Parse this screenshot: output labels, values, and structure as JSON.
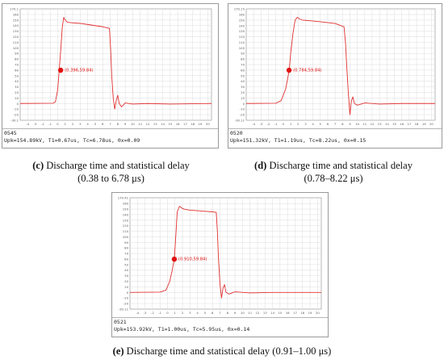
{
  "colors": {
    "trace": "#e03030",
    "marker": "#e01010",
    "grid": "#dcdcdc",
    "axis": "#888888",
    "frame": "#9a9a9a"
  },
  "chart_data": [
    {
      "type": "line",
      "id": "c",
      "top_label": "170.1",
      "bottom_label": "-30.1",
      "y_ticks": [
        160,
        150,
        140,
        130,
        120,
        110,
        100,
        90,
        80,
        70,
        60,
        50,
        40,
        30,
        20,
        10,
        0,
        -10,
        -20
      ],
      "x_ticks": [
        -4,
        -3,
        -2,
        -1,
        0,
        1,
        2,
        3,
        4,
        5,
        6,
        7,
        8,
        9,
        10,
        11,
        12,
        13,
        14,
        15,
        16,
        17,
        18,
        19,
        20
      ],
      "xlim": [
        -5,
        20.5
      ],
      "ylim": [
        -30.1,
        170.1
      ],
      "marker": {
        "x": 0.396,
        "y": 59.84,
        "label": "(0.396,59.84)"
      },
      "series": [
        {
          "x": [
            -5,
            -0.6,
            -0.3,
            0,
            0.2,
            0.4,
            0.6,
            0.8,
            1.0,
            1.3,
            2,
            3,
            4,
            5,
            6,
            6.9,
            7.05,
            7.2,
            7.4,
            7.6,
            7.8,
            8.0,
            8.2,
            8.5,
            9,
            10,
            12,
            15,
            20.5
          ],
          "y": [
            0,
            0.5,
            3,
            25,
            60,
            95,
            135,
            155,
            150,
            146,
            145,
            144,
            142,
            140,
            138,
            135,
            100,
            50,
            10,
            -10,
            5,
            15,
            0,
            -6,
            1,
            -1,
            0,
            -1,
            0
          ]
        }
      ],
      "id_text": "0545",
      "info": "Upk=154.89kV, T1=0.67us, Tc=6.78us, 0x=0.09",
      "caption_letter": "(c)",
      "caption_line1": " Discharge time and statistical delay",
      "caption_line2": "(0.38 to 6.78 μs)"
    },
    {
      "type": "line",
      "id": "d",
      "top_label": "170.15",
      "bottom_label": "-30.11",
      "y_ticks": [
        160,
        150,
        140,
        130,
        120,
        110,
        100,
        90,
        80,
        70,
        60,
        50,
        40,
        30,
        20,
        10,
        0,
        -10,
        -20
      ],
      "x_ticks": [
        -4,
        -3,
        -2,
        -1,
        0,
        1,
        2,
        3,
        4,
        5,
        6,
        7,
        8,
        9,
        10,
        11,
        12,
        13,
        14,
        15,
        16,
        17,
        18,
        19,
        20
      ],
      "xlim": [
        -5,
        20.5
      ],
      "ylim": [
        -30.11,
        170.15
      ],
      "marker": {
        "x": 0.784,
        "y": 59.84,
        "label": "(0.784,59.84)"
      },
      "series": [
        {
          "x": [
            -5,
            -1,
            -0.3,
            0.3,
            0.6,
            0.8,
            1.0,
            1.3,
            1.6,
            1.9,
            2.2,
            2.6,
            3.5,
            5,
            7,
            8.2,
            8.4,
            8.6,
            8.8,
            9.0,
            9.2,
            9.4,
            9.6,
            10,
            11,
            13,
            16,
            20.5
          ],
          "y": [
            0,
            0.5,
            5,
            25,
            45,
            60,
            90,
            125,
            150,
            155,
            152,
            150,
            149,
            147,
            144,
            138,
            110,
            60,
            15,
            -20,
            5,
            12,
            0,
            -3,
            1,
            -1,
            0,
            0
          ]
        }
      ],
      "id_text": "0520",
      "info": "Upk=151.32kV, T1=1.19us, Tc=8.22us, 0x=0.15",
      "caption_letter": "(d)",
      "caption_line1": " Discharge time and statistical delay",
      "caption_line2": "(0.78–8.22 μs)"
    },
    {
      "type": "line",
      "id": "e",
      "top_label": "170.41",
      "bottom_label": "-30.11",
      "y_ticks": [
        160,
        150,
        140,
        130,
        120,
        110,
        100,
        90,
        80,
        70,
        60,
        50,
        40,
        30,
        20,
        10,
        0,
        -10,
        -20
      ],
      "x_ticks": [
        -4,
        -3,
        -2,
        -1,
        0,
        1,
        2,
        3,
        4,
        5,
        6,
        7,
        8,
        9,
        10,
        11,
        12,
        13,
        14,
        15,
        16,
        17,
        18,
        19,
        20
      ],
      "xlim": [
        -5,
        20.5
      ],
      "ylim": [
        -30.11,
        170.41
      ],
      "marker": {
        "x": 0.91,
        "y": 59.84,
        "label": "(0.910,59.84)"
      },
      "series": [
        {
          "x": [
            -5,
            -1,
            -0.2,
            0.3,
            0.6,
            0.91,
            1.1,
            1.3,
            1.6,
            1.9,
            2.2,
            3,
            4,
            5,
            6,
            6.5,
            6.65,
            6.8,
            7.0,
            7.2,
            7.4,
            7.6,
            7.8,
            8.2,
            9,
            11,
            14,
            20.5
          ],
          "y": [
            0,
            0.5,
            4,
            20,
            38,
            60,
            100,
            145,
            155,
            152,
            150,
            148,
            147,
            146,
            145,
            144,
            110,
            60,
            15,
            -10,
            8,
            14,
            0,
            -3,
            1,
            -1,
            0,
            0
          ]
        }
      ],
      "id_text": "0521",
      "info": "Upk=153.92kV, T1=1.00us, Tc=5.95us, 0x=0.14",
      "caption_letter": "(e)",
      "caption_line1": " Discharge time and statistical delay (0.91–1.00 μs)",
      "caption_line2": ""
    }
  ]
}
